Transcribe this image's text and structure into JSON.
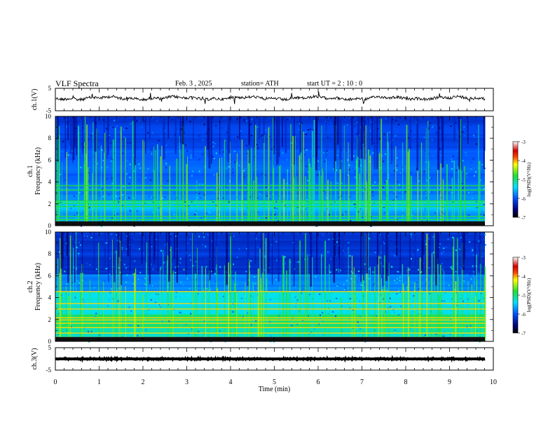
{
  "header": {
    "title": "VLF  Spectra",
    "date": "Feb. 3  , 2025",
    "station": "station= ATH",
    "start_ut": "start  UT  =   2  : 10 : 0"
  },
  "chart_data": [
    {
      "type": "line",
      "id": "ch1-waveform",
      "ylabel": "ch.1(V)",
      "ylim": [
        -5,
        5
      ],
      "yticks": [
        "5",
        "-5"
      ],
      "xlim": [
        0,
        10
      ],
      "description_values": "noisy waveform near 0 V with sporadic spikes, trace ends at ~9.8 min"
    },
    {
      "type": "heatmap",
      "id": "ch1-spectrogram",
      "ylabel": "ch.1\nFrequency (kHz)",
      "ylim": [
        0,
        10
      ],
      "yticks": [
        "0",
        "2",
        "4",
        "6",
        "8",
        "10"
      ],
      "xlim": [
        0,
        10
      ],
      "colorbar": {
        "label": "log(PSD)(V²/Hz)",
        "range": [
          -7,
          -3
        ],
        "ticks": [
          "-3",
          "-4",
          "-5",
          "-6",
          "-7"
        ]
      }
    },
    {
      "type": "heatmap",
      "id": "ch2-spectrogram",
      "ylabel": "ch.2\nFrequency (kHz)",
      "ylim": [
        0,
        10
      ],
      "yticks": [
        "0",
        "2",
        "4",
        "6",
        "8",
        "10"
      ],
      "xlim": [
        0,
        10
      ],
      "colorbar": {
        "label": "log(PSD)(V²/Hz)",
        "range": [
          -7,
          -3
        ],
        "ticks": [
          "-3",
          "-4",
          "-5",
          "-6",
          "-7"
        ]
      }
    },
    {
      "type": "line",
      "id": "ch3-waveform",
      "ylabel": "ch.3(V)",
      "ylim": [
        -5,
        5
      ],
      "yticks": [
        "5",
        "-5"
      ],
      "xlim": [
        0,
        10
      ],
      "xlabel": "Time  (min)",
      "xticks": [
        "0",
        "1",
        "2",
        "3",
        "4",
        "5",
        "6",
        "7",
        "8",
        "9",
        "10"
      ]
    }
  ]
}
